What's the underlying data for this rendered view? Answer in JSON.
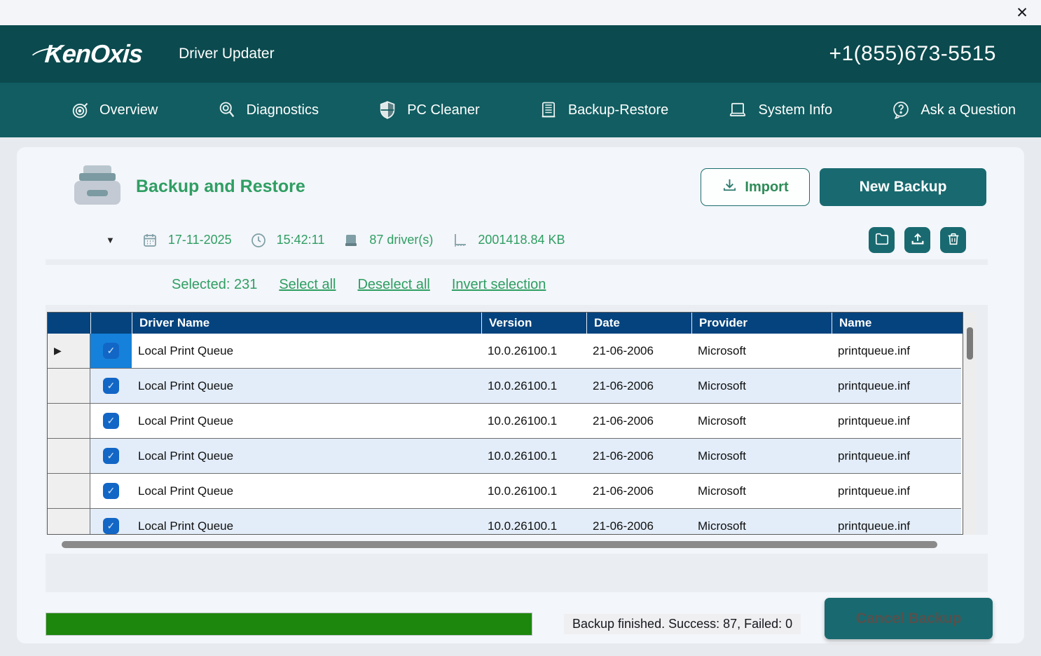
{
  "window": {
    "close_icon": "✕"
  },
  "header": {
    "logo": "KenOxis",
    "app_title": "Driver Updater",
    "phone": "+1(855)673-5515"
  },
  "nav": {
    "items": [
      {
        "label": "Overview",
        "icon": "target-icon"
      },
      {
        "label": "Diagnostics",
        "icon": "magnifier-icon"
      },
      {
        "label": "PC Cleaner",
        "icon": "shield-icon"
      },
      {
        "label": "Backup-Restore",
        "icon": "ledger-icon"
      },
      {
        "label": "System Info",
        "icon": "laptop-icon"
      },
      {
        "label": "Ask a Question",
        "icon": "question-bubble-icon"
      }
    ]
  },
  "page": {
    "title": "Backup and Restore",
    "import_label": "Import",
    "new_backup_label": "New Backup"
  },
  "backup_info": {
    "dropdown_icon": "▼",
    "date": "17-11-2025",
    "time": "15:42:11",
    "drivers": "87 driver(s)",
    "size": "2001418.84 KB"
  },
  "selection": {
    "selected_label": "Selected: 231",
    "select_all": "Select all",
    "deselect_all": "Deselect all",
    "invert": "Invert selection"
  },
  "table": {
    "headers": {
      "driver_name": "Driver Name",
      "version": "Version",
      "date": "Date",
      "provider": "Provider",
      "name": "Name"
    },
    "rows": [
      {
        "driver_name": "Local Print Queue",
        "version": "10.0.26100.1",
        "date": "21-06-2006",
        "provider": "Microsoft",
        "name": "printqueue.inf",
        "checked": "true"
      },
      {
        "driver_name": "Local Print Queue",
        "version": "10.0.26100.1",
        "date": "21-06-2006",
        "provider": "Microsoft",
        "name": "printqueue.inf",
        "checked": "true"
      },
      {
        "driver_name": "Local Print Queue",
        "version": "10.0.26100.1",
        "date": "21-06-2006",
        "provider": "Microsoft",
        "name": "printqueue.inf",
        "checked": "true"
      },
      {
        "driver_name": "Local Print Queue",
        "version": "10.0.26100.1",
        "date": "21-06-2006",
        "provider": "Microsoft",
        "name": "printqueue.inf",
        "checked": "true"
      },
      {
        "driver_name": "Local Print Queue",
        "version": "10.0.26100.1",
        "date": "21-06-2006",
        "provider": "Microsoft",
        "name": "printqueue.inf",
        "checked": "true"
      },
      {
        "driver_name": "Local Print Queue",
        "version": "10.0.26100.1",
        "date": "21-06-2006",
        "provider": "Microsoft",
        "name": "printqueue.inf",
        "checked": "true"
      }
    ]
  },
  "icons": {
    "row_pointer": "▶",
    "check": "✓"
  },
  "footer": {
    "progress_percent": 100,
    "status": "Backup finished. Success: 87, Failed: 0",
    "cancel_label": "Cancel Backup"
  },
  "colors": {
    "header_teal": "#0b4a4e",
    "nav_teal": "#115d61",
    "accent_teal": "#186a70",
    "title_green": "#2f9e63",
    "table_header_blue": "#04437e",
    "selected_cell_blue": "#1581da",
    "checkbox_blue": "#1266c5",
    "alt_row_blue": "#e3edf9",
    "progress_green": "#1d870d"
  }
}
